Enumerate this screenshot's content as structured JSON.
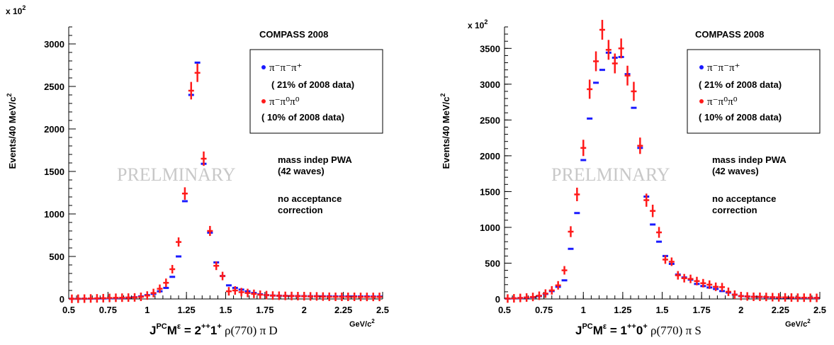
{
  "panels": [
    {
      "exponent_label": "x 10",
      "exponent_power": "2",
      "ylabel": "Events/40 MeV/c",
      "ylabel_sup": "2",
      "experiment": "COMPASS 2008",
      "watermark": "PRELMINARY",
      "legend": [
        {
          "label": "π⁻π⁻π⁺",
          "sub": "( 21% of 2008 data)",
          "color": "#1a1aff"
        },
        {
          "label": "π⁻π⁰π⁰",
          "sub": "( 10% of 2008 data)",
          "color": "#ff1a1a"
        }
      ],
      "notes": [
        "mass indep PWA",
        "(42 waves)",
        "no acceptance",
        "correction"
      ],
      "xunit": "GeV/c",
      "xunit_sup": "2",
      "xlabel_main": "J",
      "xlabel_sup": "PC",
      "xlabel_m": "M",
      "xlabel_eps": "ε",
      "xlabel_rest": " = 2",
      "xlabel_sup2": "++",
      "xlabel_rest2": "1",
      "xlabel_sup3": "+",
      "xlabel_tail": " ρ(770) π D"
    },
    {
      "exponent_label": "x 10",
      "exponent_power": "2",
      "ylabel": "Events/40 MeV/c",
      "ylabel_sup": "2",
      "experiment": "COMPASS 2008",
      "watermark": "PRELMINARY",
      "legend": [
        {
          "label": "π⁻π⁻π⁺",
          "sub": "( 21% of 2008 data)",
          "color": "#1a1aff"
        },
        {
          "label": "π⁻π⁰π⁰",
          "sub": "( 10% of 2008 data)",
          "color": "#ff1a1a"
        }
      ],
      "notes": [
        "mass indep PWA",
        "(42 waves)",
        "no acceptance",
        "correction"
      ],
      "xunit": "GeV/c",
      "xunit_sup": "2",
      "xlabel_main": "J",
      "xlabel_sup": "PC",
      "xlabel_m": "M",
      "xlabel_eps": "ε",
      "xlabel_rest": " = 1",
      "xlabel_sup2": "++",
      "xlabel_rest2": "0",
      "xlabel_sup3": "+",
      "xlabel_tail": " ρ(770) π S"
    }
  ],
  "chart_data": [
    {
      "type": "scatter",
      "xlim": [
        0.5,
        2.5
      ],
      "ylim": [
        0,
        3200
      ],
      "xticks": [
        "0.5",
        "0.75",
        "1",
        "1.25",
        "1.5",
        "1.75",
        "2",
        "2.25",
        "2.5"
      ],
      "yticks": [
        "0",
        "500",
        "1000",
        "1500",
        "2000",
        "2500",
        "3000"
      ],
      "grid": false,
      "legend_position": "top-right",
      "series": [
        {
          "name": "π⁻π⁻π⁺",
          "color": "#1a1aff",
          "x": [
            0.52,
            0.56,
            0.6,
            0.64,
            0.68,
            0.72,
            0.76,
            0.8,
            0.84,
            0.88,
            0.92,
            0.96,
            1.0,
            1.04,
            1.08,
            1.12,
            1.16,
            1.2,
            1.24,
            1.28,
            1.32,
            1.36,
            1.4,
            1.44,
            1.48,
            1.52,
            1.56,
            1.6,
            1.64,
            1.68,
            1.72,
            1.76,
            1.8,
            1.84,
            1.88,
            1.92,
            1.96,
            2.0,
            2.04,
            2.08,
            2.12,
            2.16,
            2.2,
            2.24,
            2.28,
            2.32,
            2.36,
            2.4,
            2.44,
            2.48
          ],
          "y": [
            2,
            2,
            3,
            4,
            5,
            6,
            8,
            10,
            12,
            15,
            20,
            30,
            45,
            60,
            90,
            130,
            260,
            500,
            1150,
            2400,
            2780,
            1590,
            780,
            430,
            270,
            160,
            130,
            110,
            90,
            70,
            55,
            45,
            40,
            38,
            36,
            35,
            34,
            33,
            32,
            32,
            31,
            31,
            30,
            30,
            30,
            30,
            29,
            29,
            28,
            28
          ],
          "error": false
        },
        {
          "name": "π⁻π⁰π⁰",
          "color": "#ff1a1a",
          "x": [
            0.52,
            0.56,
            0.6,
            0.64,
            0.68,
            0.72,
            0.76,
            0.8,
            0.84,
            0.88,
            0.92,
            0.96,
            1.0,
            1.04,
            1.08,
            1.12,
            1.16,
            1.2,
            1.24,
            1.28,
            1.32,
            1.36,
            1.4,
            1.44,
            1.48,
            1.52,
            1.56,
            1.6,
            1.64,
            1.68,
            1.72,
            1.76,
            1.8,
            1.84,
            1.88,
            1.92,
            1.96,
            2.0,
            2.04,
            2.08,
            2.12,
            2.16,
            2.2,
            2.24,
            2.28,
            2.32,
            2.36,
            2.4,
            2.44,
            2.48
          ],
          "y": [
            2,
            3,
            4,
            6,
            7,
            9,
            12,
            14,
            15,
            16,
            18,
            25,
            40,
            70,
            120,
            190,
            350,
            670,
            1240,
            2450,
            2660,
            1650,
            800,
            390,
            270,
            90,
            100,
            80,
            70,
            60,
            50,
            45,
            40,
            38,
            36,
            35,
            33,
            32,
            30,
            30,
            28,
            26,
            25,
            25,
            25,
            25,
            24,
            24,
            24,
            24
          ],
          "error": true
        }
      ]
    },
    {
      "type": "scatter",
      "xlim": [
        0.5,
        2.5
      ],
      "ylim": [
        0,
        3800
      ],
      "xticks": [
        "0.5",
        "0.75",
        "1",
        "1.25",
        "1.5",
        "1.75",
        "2",
        "2.25",
        "2.5"
      ],
      "yticks": [
        "0",
        "500",
        "1000",
        "1500",
        "2000",
        "2500",
        "3000",
        "3500"
      ],
      "grid": false,
      "legend_position": "top-right",
      "series": [
        {
          "name": "π⁻π⁻π⁺",
          "color": "#1a1aff",
          "x": [
            0.52,
            0.56,
            0.6,
            0.64,
            0.68,
            0.72,
            0.76,
            0.8,
            0.84,
            0.88,
            0.92,
            0.96,
            1.0,
            1.04,
            1.08,
            1.12,
            1.16,
            1.2,
            1.24,
            1.28,
            1.32,
            1.36,
            1.4,
            1.44,
            1.48,
            1.52,
            1.56,
            1.6,
            1.64,
            1.68,
            1.72,
            1.76,
            1.8,
            1.84,
            1.88,
            1.92,
            1.96,
            2.0,
            2.04,
            2.08,
            2.12,
            2.16,
            2.2,
            2.24,
            2.28,
            2.32,
            2.36,
            2.4,
            2.44,
            2.48
          ],
          "y": [
            5,
            8,
            12,
            18,
            25,
            40,
            70,
            110,
            170,
            260,
            700,
            1200,
            1940,
            2520,
            3020,
            3200,
            3440,
            3370,
            3380,
            3140,
            2670,
            2110,
            1430,
            1040,
            800,
            600,
            490,
            340,
            300,
            270,
            210,
            180,
            160,
            140,
            110,
            90,
            60,
            40,
            35,
            30,
            28,
            25,
            22,
            20,
            20,
            18,
            16,
            15,
            15,
            14
          ],
          "error": false
        },
        {
          "name": "π⁻π⁰π⁰",
          "color": "#ff1a1a",
          "x": [
            0.52,
            0.56,
            0.6,
            0.64,
            0.68,
            0.72,
            0.76,
            0.8,
            0.84,
            0.88,
            0.92,
            0.96,
            1.0,
            1.04,
            1.08,
            1.12,
            1.16,
            1.2,
            1.24,
            1.28,
            1.32,
            1.36,
            1.4,
            1.44,
            1.48,
            1.52,
            1.56,
            1.6,
            1.64,
            1.68,
            1.72,
            1.76,
            1.8,
            1.84,
            1.88,
            1.92,
            1.96,
            2.0,
            2.04,
            2.08,
            2.12,
            2.16,
            2.2,
            2.24,
            2.28,
            2.32,
            2.36,
            2.4,
            2.44,
            2.48
          ],
          "y": [
            6,
            9,
            14,
            20,
            28,
            45,
            75,
            120,
            190,
            400,
            940,
            1460,
            2110,
            2930,
            3320,
            3760,
            3480,
            3290,
            3500,
            3120,
            2900,
            2140,
            1380,
            1230,
            930,
            550,
            520,
            330,
            290,
            280,
            250,
            220,
            200,
            170,
            165,
            100,
            60,
            40,
            35,
            30,
            30,
            28,
            25,
            22,
            22,
            20,
            18,
            18,
            16,
            15
          ],
          "error": true
        }
      ]
    }
  ]
}
